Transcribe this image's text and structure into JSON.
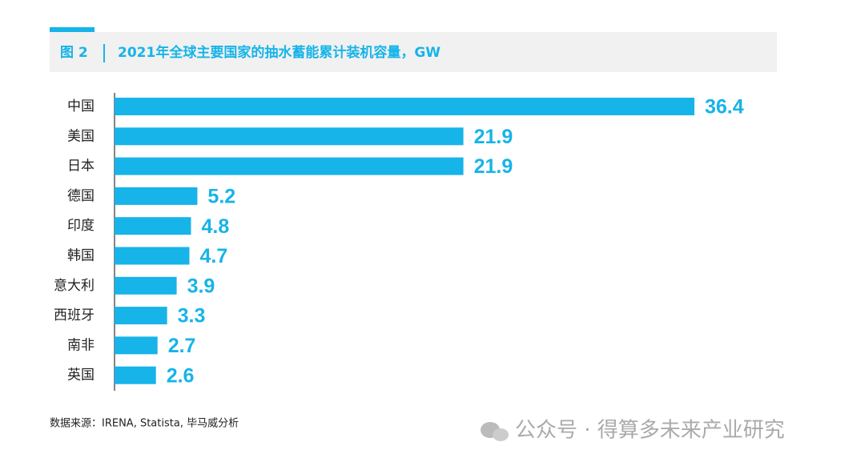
{
  "chart_data": {
    "type": "bar",
    "orientation": "horizontal",
    "figure_label": "图 2",
    "title": "2021年全球主要国家的抽水蓄能累计装机容量，GW",
    "categories": [
      "中国",
      "美国",
      "日本",
      "德国",
      "印度",
      "韩国",
      "意大利",
      "西班牙",
      "南非",
      "英国"
    ],
    "values": [
      36.4,
      21.9,
      21.9,
      5.2,
      4.8,
      4.7,
      3.9,
      3.3,
      2.7,
      2.6
    ],
    "color": "#16b4e8",
    "source": "数据来源：IRENA, Statista, 毕马威分析",
    "watermark": "公众号 · 得算多未来产业研究"
  }
}
